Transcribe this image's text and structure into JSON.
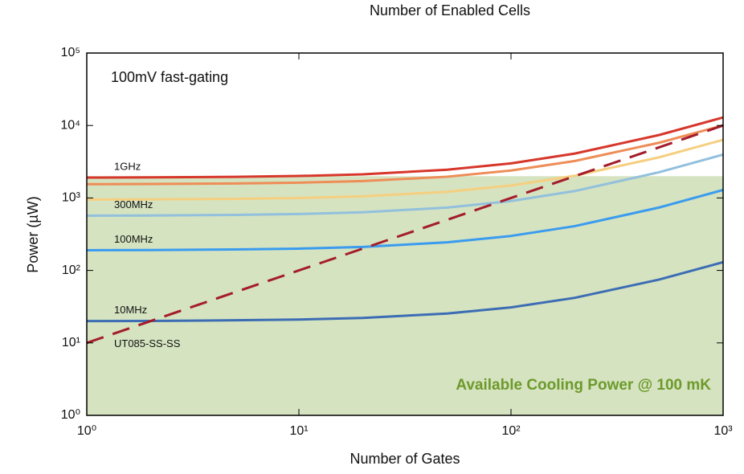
{
  "chart_data": {
    "type": "line",
    "title": "Number of Enabled Cells",
    "x_label": "Number of Gates",
    "y_label": "Power (µW)",
    "annotation": "100mV fast-gating",
    "region_label": "Available Cooling Power @ 100 mK",
    "region_limit": 2000,
    "region_color": "#d5e3c0",
    "log_x": true,
    "log_y": true,
    "xlim": [
      1,
      1000
    ],
    "ylim": [
      1,
      100000
    ],
    "xticks": [
      {
        "value": 1,
        "label": "10⁰"
      },
      {
        "value": 10,
        "label": "10¹"
      },
      {
        "value": 100,
        "label": "10²"
      },
      {
        "value": 1000,
        "label": "10³"
      }
    ],
    "yticks": [
      {
        "value": 1,
        "label": "10⁰"
      },
      {
        "value": 10,
        "label": "10¹"
      },
      {
        "value": 100,
        "label": "10²"
      },
      {
        "value": 1000,
        "label": "10³"
      },
      {
        "value": 10000,
        "label": "10⁴"
      },
      {
        "value": 100000,
        "label": "10⁵"
      }
    ],
    "x": [
      1,
      2,
      5,
      10,
      20,
      50,
      100,
      200,
      500,
      1000
    ],
    "series": [
      {
        "name": "1GHz",
        "color": "#d7372b",
        "values": [
          1911,
          1922,
          1955,
          2010,
          2120,
          2450,
          3000,
          4100,
          7400,
          12900
        ]
      },
      {
        "color": "#ee8d57",
        "values": [
          1549,
          1557,
          1583,
          1625,
          1710,
          1965,
          2390,
          3240,
          5790,
          10040
        ]
      },
      {
        "color": "#f5cf80",
        "values": [
          950,
          956,
          972,
          999,
          1053,
          1215,
          1485,
          2025,
          3645,
          6345
        ]
      },
      {
        "name": "300MHz",
        "color": "#92c0dd",
        "values": [
          569,
          573,
          583,
          600,
          634,
          736,
          906,
          1246,
          2266,
          3966
        ]
      },
      {
        "name": "100MHz",
        "color": "#3a9bef",
        "values": [
          190,
          191,
          195,
          200,
          211,
          244,
          299,
          409,
          739,
          1289
        ]
      },
      {
        "name": "10MHz",
        "color": "#3c6db4",
        "values": [
          20,
          20.1,
          20.5,
          21,
          22.1,
          25.4,
          30.9,
          41.9,
          74.9,
          129.9
        ]
      },
      {
        "name": "UT085-SS-SS",
        "color": "#a41c2a",
        "dashed": true,
        "values": [
          10,
          20,
          50,
          100,
          200,
          500,
          1000,
          2000,
          5000,
          10000
        ]
      }
    ]
  }
}
